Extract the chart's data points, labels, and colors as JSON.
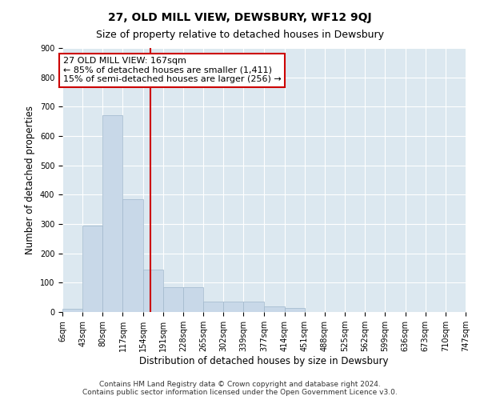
{
  "title": "27, OLD MILL VIEW, DEWSBURY, WF12 9QJ",
  "subtitle": "Size of property relative to detached houses in Dewsbury",
  "xlabel": "Distribution of detached houses by size in Dewsbury",
  "ylabel": "Number of detached properties",
  "bar_color": "#c8d8e8",
  "bar_edge_color": "#a0b8cc",
  "background_color": "#dce8f0",
  "grid_color": "#ffffff",
  "bin_edges": [
    6,
    43,
    80,
    117,
    154,
    191,
    228,
    265,
    302,
    339,
    377,
    414,
    451,
    488,
    525,
    562,
    599,
    636,
    673,
    710,
    747
  ],
  "bin_labels": [
    "6sqm",
    "43sqm",
    "80sqm",
    "117sqm",
    "154sqm",
    "191sqm",
    "228sqm",
    "265sqm",
    "302sqm",
    "339sqm",
    "377sqm",
    "414sqm",
    "451sqm",
    "488sqm",
    "525sqm",
    "562sqm",
    "599sqm",
    "636sqm",
    "673sqm",
    "710sqm",
    "747sqm"
  ],
  "bar_heights": [
    10,
    295,
    670,
    385,
    145,
    85,
    85,
    35,
    35,
    35,
    20,
    15,
    0,
    0,
    0,
    0,
    0,
    0,
    0,
    0
  ],
  "vline_x": 167,
  "vline_color": "#cc0000",
  "annotation_line1": "27 OLD MILL VIEW: 167sqm",
  "annotation_line2": "← 85% of detached houses are smaller (1,411)",
  "annotation_line3": "15% of semi-detached houses are larger (256) →",
  "annotation_box_color": "#ffffff",
  "annotation_box_edge_color": "#cc0000",
  "ylim": [
    0,
    900
  ],
  "yticks": [
    0,
    100,
    200,
    300,
    400,
    500,
    600,
    700,
    800,
    900
  ],
  "footer_text": "Contains HM Land Registry data © Crown copyright and database right 2024.\nContains public sector information licensed under the Open Government Licence v3.0.",
  "title_fontsize": 10,
  "subtitle_fontsize": 9,
  "label_fontsize": 8.5,
  "tick_fontsize": 7,
  "footer_fontsize": 6.5,
  "annotation_fontsize": 8
}
